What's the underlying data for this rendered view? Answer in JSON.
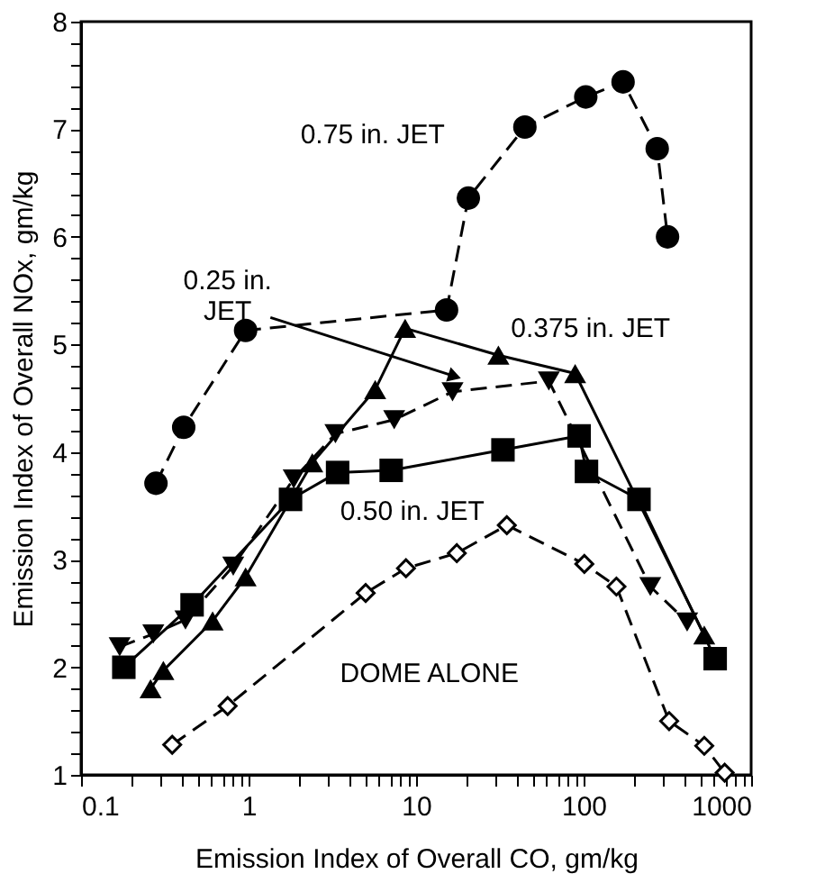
{
  "chart_data": {
    "type": "line",
    "xlabel": "Emission Index of Overall CO, gm/kg",
    "ylabel": "Emission Index of Overall NOx, gm/kg",
    "log": "x",
    "grid": false,
    "legend": false,
    "xlim": [
      0.1,
      1000
    ],
    "ylim": [
      1,
      8
    ],
    "xticks": [
      0.1,
      {
        "value": 0.2,
        "label": null
      },
      {
        "value": 0.3,
        "label": null
      },
      {
        "value": 0.4,
        "label": null
      },
      {
        "value": 0.5,
        "label": null
      },
      {
        "value": 0.6,
        "label": null
      },
      {
        "value": 0.7,
        "label": null
      },
      {
        "value": 0.8,
        "label": null
      },
      {
        "value": 0.9,
        "label": null
      },
      1,
      {
        "value": 2,
        "label": null
      },
      {
        "value": 3,
        "label": null
      },
      {
        "value": 4,
        "label": null
      },
      {
        "value": 5,
        "label": null
      },
      {
        "value": 6,
        "label": null
      },
      {
        "value": 7,
        "label": null
      },
      {
        "value": 8,
        "label": null
      },
      {
        "value": 9,
        "label": null
      },
      10,
      {
        "value": 20,
        "label": null
      },
      {
        "value": 30,
        "label": null
      },
      {
        "value": 40,
        "label": null
      },
      {
        "value": 50,
        "label": null
      },
      {
        "value": 60,
        "label": null
      },
      {
        "value": 70,
        "label": null
      },
      {
        "value": 80,
        "label": null
      },
      {
        "value": 90,
        "label": null
      },
      100,
      {
        "value": 200,
        "label": null
      },
      {
        "value": 300,
        "label": null
      },
      {
        "value": 400,
        "label": null
      },
      {
        "value": 500,
        "label": null
      },
      {
        "value": 600,
        "label": null
      },
      {
        "value": 700,
        "label": null
      },
      {
        "value": 800,
        "label": null
      },
      {
        "value": 900,
        "label": null
      },
      1000
    ],
    "yticks": [
      1,
      {
        "value": 1.2,
        "label": null
      },
      {
        "value": 1.4,
        "label": null
      },
      {
        "value": 1.6,
        "label": null
      },
      {
        "value": 1.8,
        "label": null
      },
      2,
      {
        "value": 2.2,
        "label": null
      },
      {
        "value": 2.4,
        "label": null
      },
      {
        "value": 2.6,
        "label": null
      },
      {
        "value": 2.8,
        "label": null
      },
      3,
      {
        "value": 3.2,
        "label": null
      },
      {
        "value": 3.4,
        "label": null
      },
      {
        "value": 3.6,
        "label": null
      },
      {
        "value": 3.8,
        "label": null
      },
      4,
      {
        "value": 4.2,
        "label": null
      },
      {
        "value": 4.4,
        "label": null
      },
      {
        "value": 4.6,
        "label": null
      },
      {
        "value": 4.8,
        "label": null
      },
      5,
      {
        "value": 5.2,
        "label": null
      },
      {
        "value": 5.4,
        "label": null
      },
      {
        "value": 5.6,
        "label": null
      },
      {
        "value": 5.8,
        "label": null
      },
      6,
      {
        "value": 6.2,
        "label": null
      },
      {
        "value": 6.4,
        "label": null
      },
      {
        "value": 6.6,
        "label": null
      },
      {
        "value": 6.8,
        "label": null
      },
      7,
      {
        "value": 7.2,
        "label": null
      },
      {
        "value": 7.4,
        "label": null
      },
      {
        "value": 7.6,
        "label": null
      },
      {
        "value": 7.8,
        "label": null
      },
      8
    ],
    "series": [
      {
        "name": "0.75 in. JET",
        "color": "#000000",
        "marker": "circle",
        "line_style": "dashed",
        "x": [
          0.28,
          0.41,
          0.96,
          15.2,
          20.5,
          44.6,
          103,
          172,
          275,
          317
        ],
        "values": [
          3.71,
          4.23,
          5.13,
          5.32,
          6.36,
          7.02,
          7.3,
          7.44,
          6.82,
          6.0
        ]
      },
      {
        "name": "0.375 in. JET",
        "color": "#000000",
        "marker": "triangle",
        "line_style": "solid",
        "x": [
          0.26,
          0.31,
          0.61,
          0.96,
          2.4,
          5.7,
          8.6,
          31,
          89,
          525
        ],
        "values": [
          1.8,
          1.97,
          2.43,
          2.84,
          3.9,
          4.58,
          5.15,
          4.9,
          4.73,
          2.3
        ]
      },
      {
        "name": "0.25 in.\nJET",
        "color": "#000000",
        "marker": "triangle-down",
        "line_style": "dashed",
        "x": [
          0.17,
          0.27,
          0.42,
          0.81,
          1.86,
          3.3,
          7.4,
          16.5,
          62,
          250,
          415
        ],
        "values": [
          2.19,
          2.31,
          2.44,
          2.94,
          3.75,
          4.17,
          4.3,
          4.56,
          4.66,
          2.75,
          2.42
        ]
      },
      {
        "name": "0.50 in. JET",
        "color": "#000000",
        "marker": "square",
        "line_style": "solid",
        "x": [
          0.18,
          0.46,
          1.78,
          3.4,
          7.1,
          33,
          94,
          104,
          214,
          610
        ],
        "values": [
          2.0,
          2.58,
          3.56,
          3.81,
          3.83,
          4.02,
          4.15,
          3.82,
          3.56,
          2.08
        ]
      },
      {
        "name": "DOME ALONE",
        "color": "#000000",
        "marker": "diamond-open",
        "line_style": "dashed",
        "x": [
          0.35,
          0.75,
          5.0,
          8.7,
          17.5,
          34.8,
          101,
          157,
          324,
          525,
          695
        ],
        "values": [
          1.28,
          1.64,
          2.69,
          2.92,
          3.06,
          3.32,
          2.96,
          2.75,
          1.5,
          1.27,
          1.02
        ]
      }
    ]
  }
}
